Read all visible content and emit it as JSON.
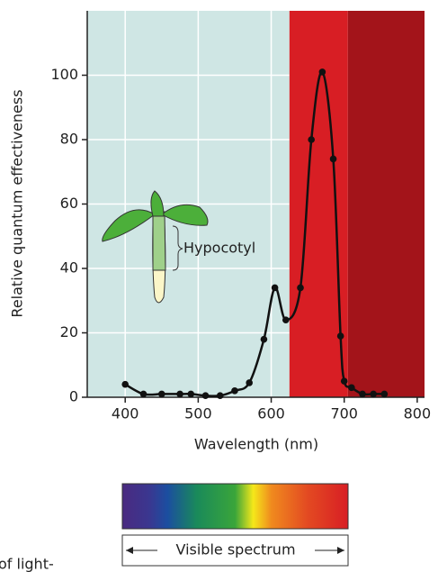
{
  "chart_data": {
    "type": "line",
    "x_label": "Wavelength (nm)",
    "y_label": "Relative quantum effectiveness",
    "x": [
      400,
      425,
      450,
      475,
      490,
      510,
      530,
      550,
      570,
      590,
      605,
      620,
      640,
      655,
      670,
      685,
      695,
      700,
      710,
      725,
      740,
      755
    ],
    "series": [
      {
        "color": "#111111",
        "values": [
          4,
          1,
          1,
          1,
          1,
          0.5,
          0.5,
          2,
          4.5,
          18,
          34,
          24,
          34,
          80,
          101,
          74,
          19,
          5,
          3,
          1,
          1,
          1
        ]
      }
    ],
    "xlim": [
      348,
      810
    ],
    "ylim": [
      0,
      120
    ],
    "xticks": [
      400,
      500,
      600,
      700,
      800
    ],
    "yticks": [
      0,
      20,
      40,
      60,
      80,
      100
    ],
    "grid": true,
    "bands": [
      {
        "from": 348,
        "to": 625,
        "color": "#cfe6e4"
      },
      {
        "from": 625,
        "to": 705,
        "color": "#d81e24"
      },
      {
        "from": 705,
        "to": 810,
        "color": "#a3141a"
      }
    ],
    "annotation": "Hypocotyl",
    "spectrum_label": "Visible spectrum",
    "caption_fragment": "of light-"
  }
}
